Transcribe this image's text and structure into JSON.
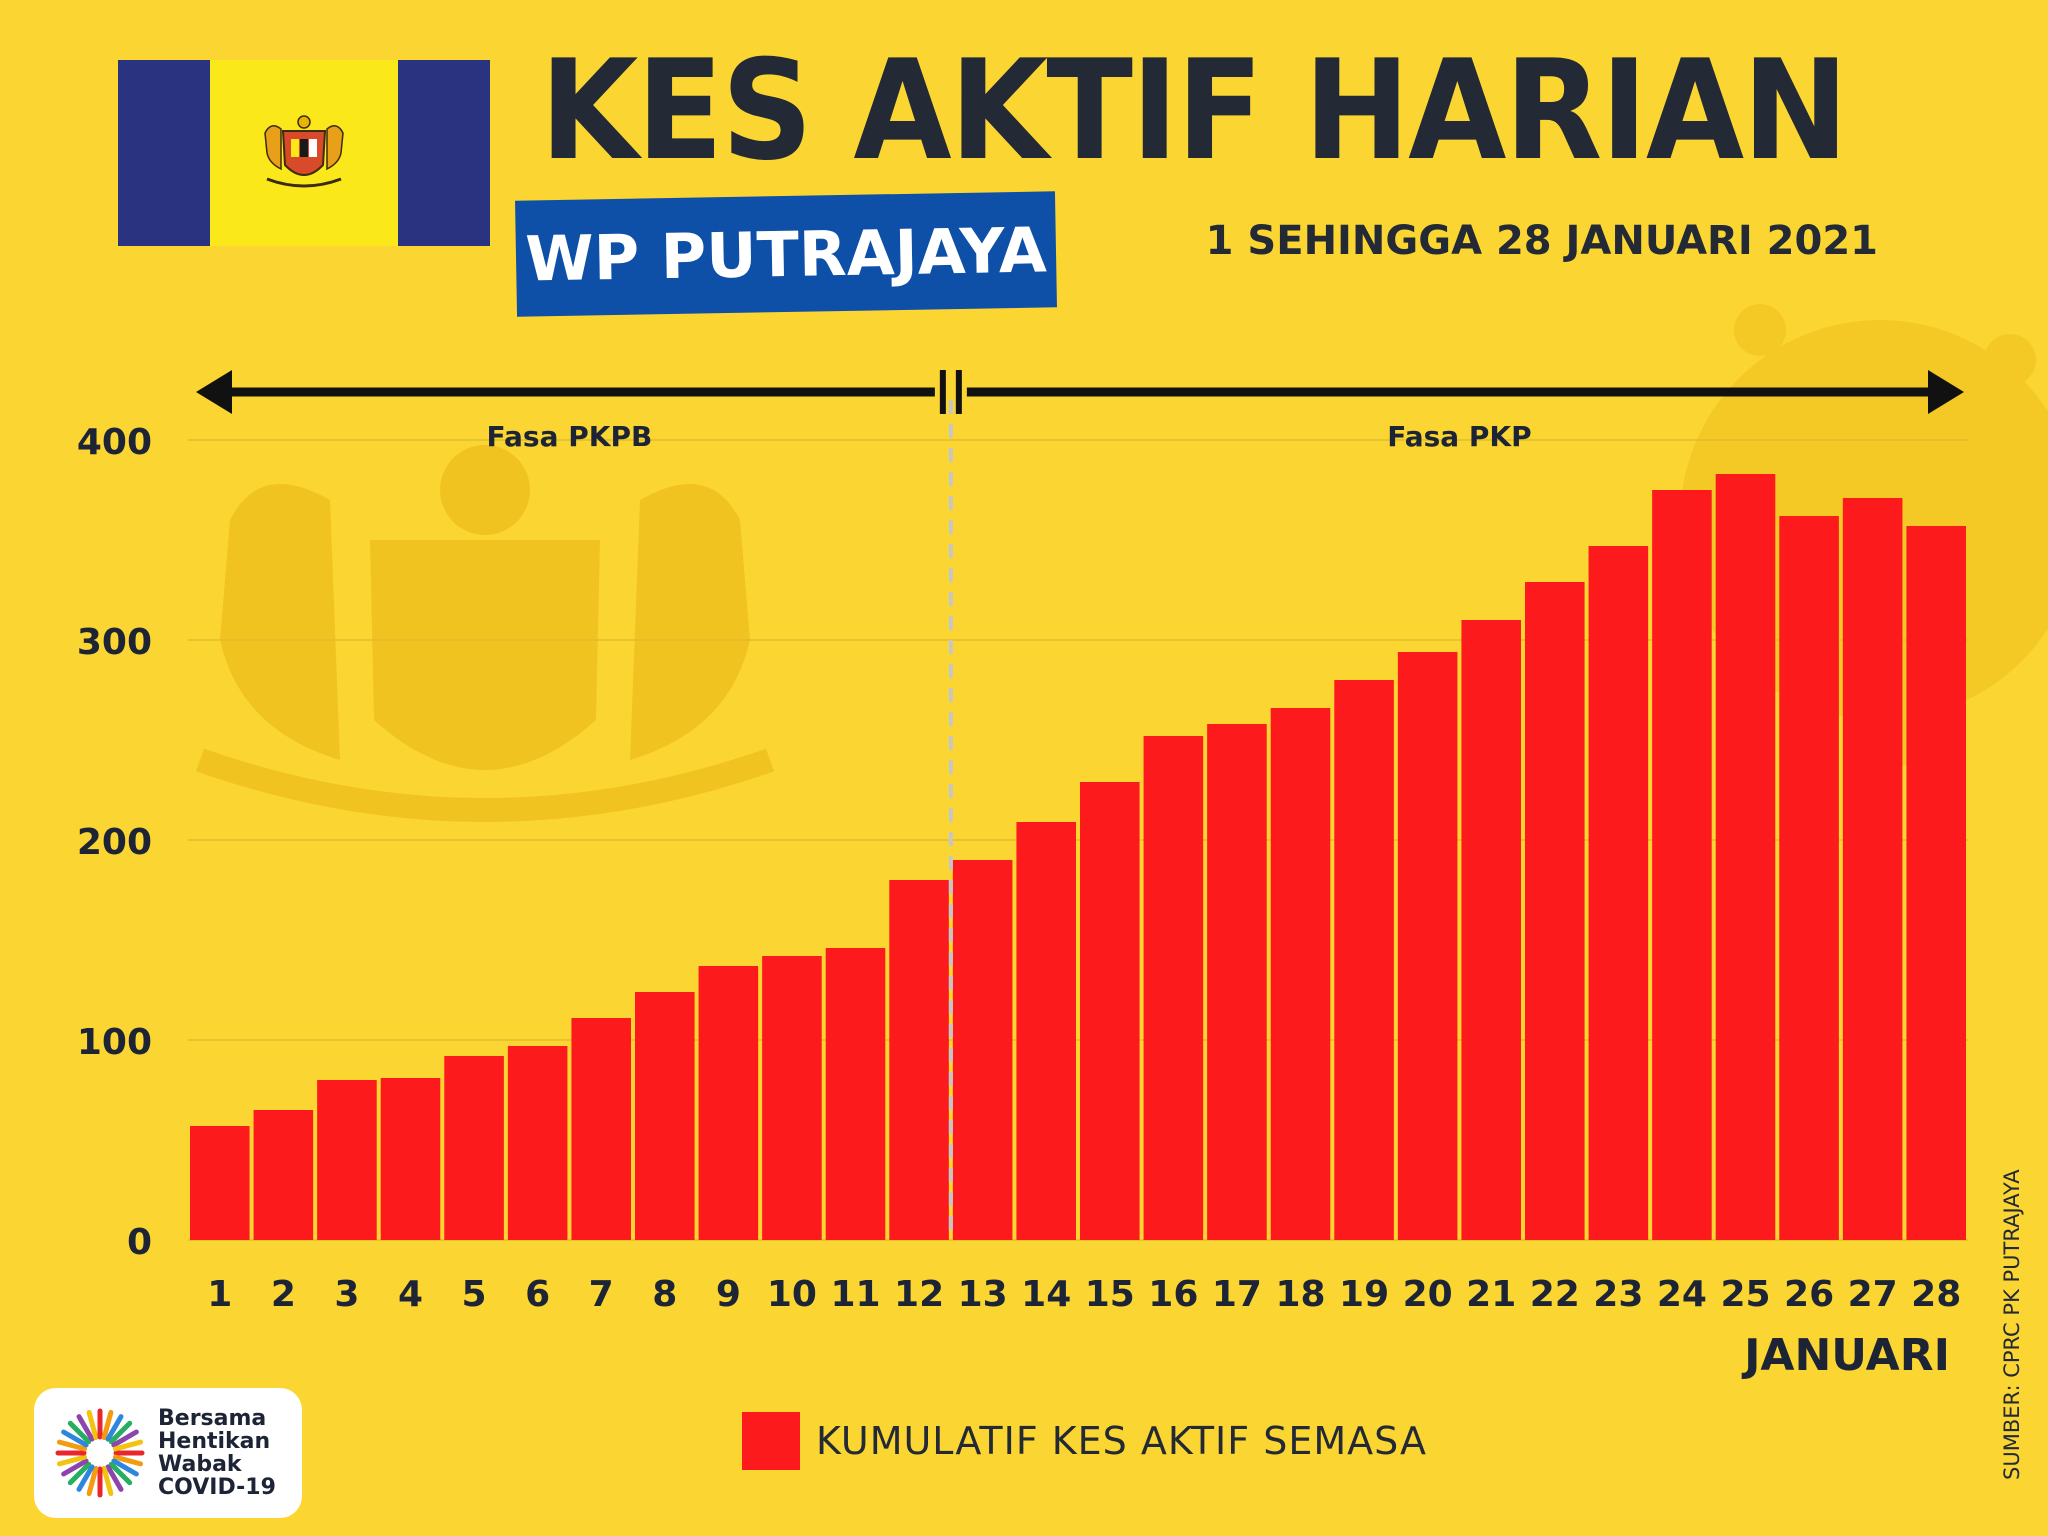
{
  "header": {
    "title": "KES AKTIF HARIAN",
    "region": "WP PUTRAJAYA",
    "date_range": "1 SEHINGGA 28 JANUARI 2021"
  },
  "flag": {
    "colors": {
      "band": "#2a3380",
      "center": "#fbe81a"
    },
    "emblem": "coat-of-arms-icon"
  },
  "source_note": "SUMBER: CPRC PK PUTRAJAYA",
  "logo": {
    "lines": [
      "Bersama",
      "Hentikan",
      "Wabak",
      "COVID-19"
    ]
  },
  "legend": {
    "label": "KUMULATIF KES AKTIF SEMASA",
    "color": "#fc1a1c"
  },
  "chart_data": {
    "type": "bar",
    "title": "",
    "xlabel": "Januari",
    "ylabel": "",
    "ylim": [
      0,
      400
    ],
    "yticks": [
      0,
      100,
      200,
      300,
      400
    ],
    "grid": true,
    "categories": [
      "1",
      "2",
      "3",
      "4",
      "5",
      "6",
      "7",
      "8",
      "9",
      "10",
      "11",
      "12",
      "13",
      "14",
      "15",
      "16",
      "17",
      "18",
      "19",
      "20",
      "21",
      "22",
      "23",
      "24",
      "25",
      "26",
      "27",
      "28"
    ],
    "series": [
      {
        "name": "KUMULATIF KES AKTIF SEMASA",
        "color": "#fc1a1c",
        "values": [
          57,
          65,
          80,
          81,
          92,
          97,
          111,
          124,
          137,
          142,
          146,
          180,
          190,
          209,
          229,
          252,
          258,
          266,
          280,
          294,
          310,
          329,
          347,
          375,
          383,
          362,
          371,
          357
        ]
      }
    ],
    "phases": [
      {
        "label": "Fasa PKPB",
        "from": "1",
        "to": "12"
      },
      {
        "label": "Fasa PKP",
        "from": "13",
        "to": "28"
      }
    ]
  }
}
